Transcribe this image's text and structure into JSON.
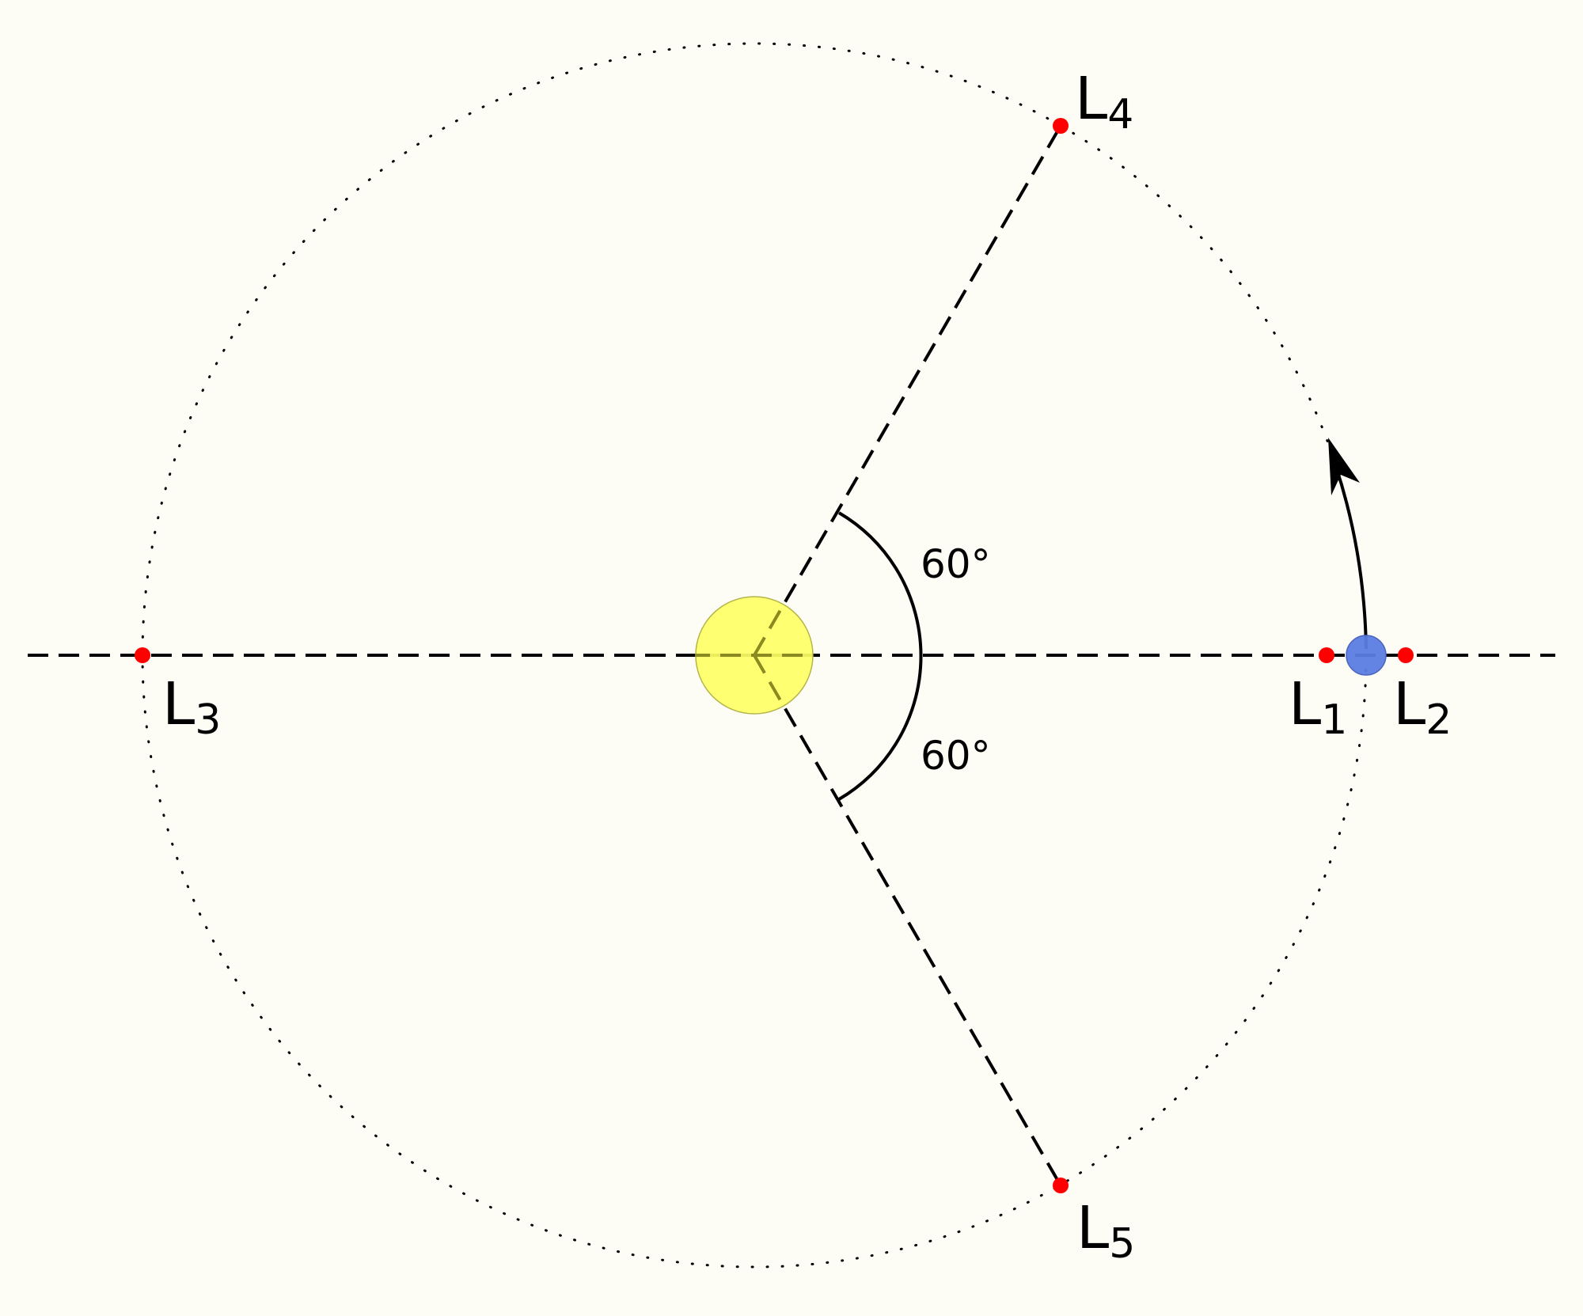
{
  "colors": {
    "background": "#fdfcf5",
    "sun_fill": "#ffff66",
    "sun_stroke": "#b5b54a",
    "planet_fill": "#5b7de0",
    "planet_stroke": "#4a66c0",
    "point_fill": "#ff0000",
    "line": "#000000"
  },
  "angles": {
    "upper": "60°",
    "lower": "60°"
  },
  "points": [
    {
      "id": "L1",
      "letter": "L",
      "sub": "1"
    },
    {
      "id": "L2",
      "letter": "L",
      "sub": "2"
    },
    {
      "id": "L3",
      "letter": "L",
      "sub": "3"
    },
    {
      "id": "L4",
      "letter": "L",
      "sub": "4"
    },
    {
      "id": "L5",
      "letter": "L",
      "sub": "5"
    }
  ]
}
